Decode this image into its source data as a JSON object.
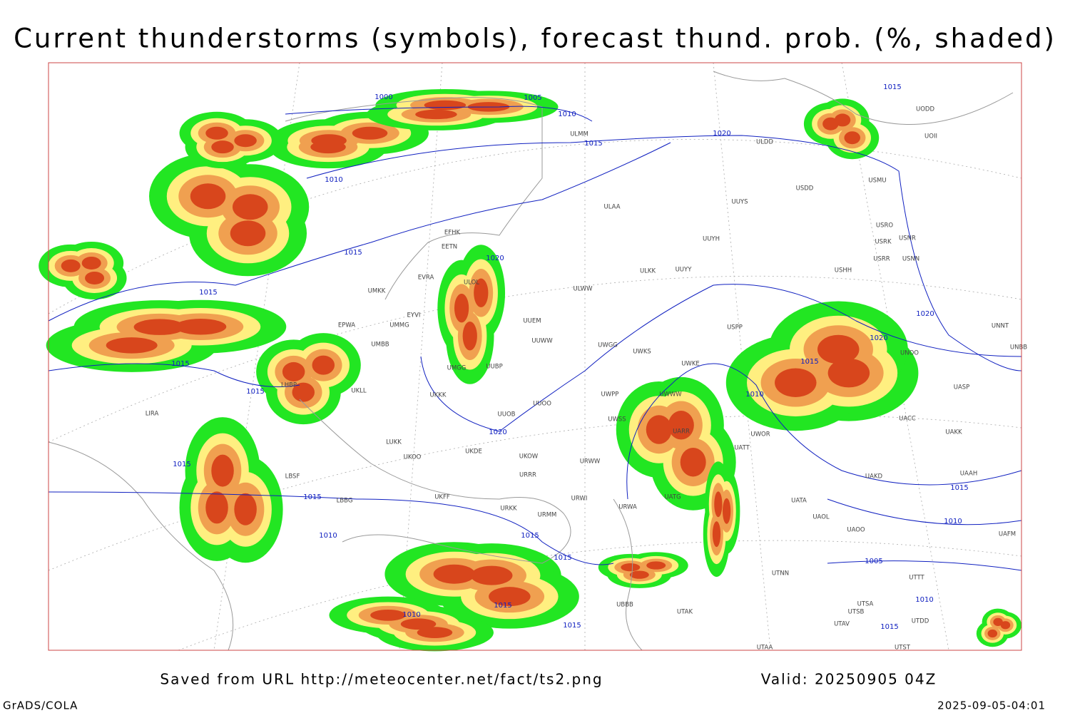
{
  "header": {
    "title": "Current thunderstorms (symbols), forecast thund. prob. (%, shaded)"
  },
  "isobar_labels": [
    1000,
    1005,
    1010,
    1015,
    1020,
    1010,
    1015,
    1015,
    1015,
    1015,
    1020,
    1020,
    1015,
    1015,
    1010,
    1015,
    1015,
    1015,
    1010,
    1015,
    1010,
    1015,
    1020,
    1020,
    1015,
    1015,
    1010,
    1005,
    1010,
    1015
  ],
  "station_labels": [
    "ULMM",
    "ULAA",
    "ULDD",
    "UUYS",
    "USDD",
    "USMU",
    "UODD",
    "UOII",
    "USRO",
    "USRK",
    "USNR",
    "USRR",
    "USNN",
    "USHH",
    "UUYH",
    "UUYY",
    "ULKK",
    "ULWW",
    "UUEM",
    "UUWW",
    "UWGG",
    "UWKS",
    "UUBP",
    "UMGG",
    "UKKK",
    "UUOO",
    "UUOB",
    "UWPP",
    "UWSS",
    "UWKE",
    "UWWW",
    "USPP",
    "UNBB",
    "UNNT",
    "UNOO",
    "UASP",
    "UACC",
    "UAKK",
    "UATT",
    "UWOR",
    "UARR",
    "UAKD",
    "UAAH",
    "UATA",
    "UAOL",
    "UAOO",
    "UAFM",
    "UTNN",
    "UATG",
    "URWW",
    "URWI",
    "URWA",
    "URRR",
    "UKOW",
    "UKDE",
    "UKOO",
    "LUKK",
    "UKFF",
    "URKK",
    "URMM",
    "LBSF",
    "LBBG",
    "LHBP",
    "UKLL",
    "UMBB",
    "UMMG",
    "EYVI",
    "EPWA",
    "EVRA",
    "EETN",
    "EFHK",
    "ULOL",
    "UMKK",
    "LIRA",
    "UTDD",
    "UTSA",
    "UTSB",
    "UTAV",
    "UTAA",
    "UTAK",
    "UBBB",
    "UTST",
    "UTTT"
  ],
  "footer": {
    "source": "Saved from URL http://meteocenter.net/fact/ts2.png",
    "valid": "Valid: 20250905 04Z",
    "software": "GrADS/COLA",
    "timestamp": "2025-09-05-04:01"
  }
}
